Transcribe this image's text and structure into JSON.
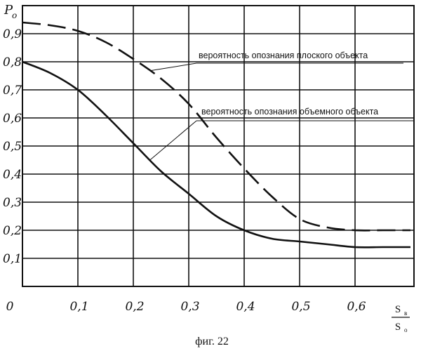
{
  "chart_data": {
    "type": "line",
    "ylabel": "P",
    "ylabel_sub": "o",
    "xlabel_num": "S",
    "xlabel_num_sub": "в",
    "xlabel_den": "S",
    "xlabel_den_sub": "о",
    "caption": "фиг. 22",
    "xlim": [
      0,
      0.7
    ],
    "ylim": [
      0,
      1.0
    ],
    "grid": true,
    "x_ticks": [
      {
        "value": 0,
        "label": "0"
      },
      {
        "value": 0.1,
        "label": "0,1"
      },
      {
        "value": 0.2,
        "label": "0,2"
      },
      {
        "value": 0.3,
        "label": "0,3"
      },
      {
        "value": 0.4,
        "label": "0,4"
      },
      {
        "value": 0.5,
        "label": "0,5"
      },
      {
        "value": 0.6,
        "label": "0,6"
      }
    ],
    "y_ticks": [
      {
        "value": 0,
        "label": "0"
      },
      {
        "value": 0.1,
        "label": "0,1"
      },
      {
        "value": 0.2,
        "label": "0,2"
      },
      {
        "value": 0.3,
        "label": "0,3"
      },
      {
        "value": 0.4,
        "label": "0,4"
      },
      {
        "value": 0.5,
        "label": "0,5"
      },
      {
        "value": 0.6,
        "label": "0,6"
      },
      {
        "value": 0.7,
        "label": "0,7"
      },
      {
        "value": 0.8,
        "label": "0,8"
      },
      {
        "value": 0.9,
        "label": "0,9"
      }
    ],
    "series": [
      {
        "name": "вероятность опознания плоского объекта",
        "style": "dashed",
        "x": [
          0,
          0.05,
          0.1,
          0.15,
          0.2,
          0.25,
          0.3,
          0.35,
          0.4,
          0.45,
          0.5,
          0.55,
          0.6,
          0.65,
          0.7
        ],
        "y": [
          0.94,
          0.93,
          0.91,
          0.87,
          0.81,
          0.74,
          0.65,
          0.53,
          0.42,
          0.32,
          0.24,
          0.21,
          0.2,
          0.2,
          0.2
        ]
      },
      {
        "name": "вероятность опознания объемного объекта",
        "style": "solid",
        "x": [
          0,
          0.05,
          0.1,
          0.15,
          0.2,
          0.25,
          0.3,
          0.35,
          0.4,
          0.45,
          0.5,
          0.55,
          0.6,
          0.65,
          0.7
        ],
        "y": [
          0.8,
          0.76,
          0.7,
          0.61,
          0.51,
          0.41,
          0.33,
          0.25,
          0.2,
          0.17,
          0.16,
          0.15,
          0.14,
          0.14,
          0.14
        ]
      }
    ],
    "annotations": [
      {
        "text": "вероятность опознания плоского объекта",
        "series": 0,
        "point_x": 0.23
      },
      {
        "text": "вероятность опознания объемного объекта",
        "series": 1,
        "point_x": 0.23
      }
    ]
  }
}
